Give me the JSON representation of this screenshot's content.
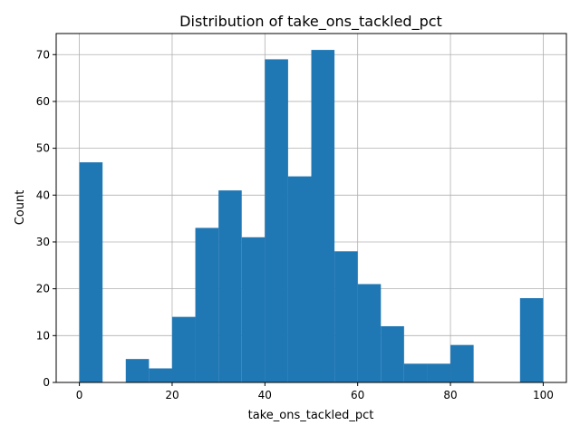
{
  "chart_data": {
    "type": "histogram",
    "title": "Distribution of take_ons_tackled_pct",
    "xlabel": "take_ons_tackled_pct",
    "ylabel": "Count",
    "xlim": [
      -5,
      105
    ],
    "ylim": [
      0,
      74.5
    ],
    "xticks": [
      0,
      20,
      40,
      60,
      80,
      100
    ],
    "yticks": [
      0,
      10,
      20,
      30,
      40,
      50,
      60,
      70
    ],
    "grid": true,
    "bin_width": 5,
    "bins": [
      0,
      5,
      10,
      15,
      20,
      25,
      30,
      35,
      40,
      45,
      50,
      55,
      60,
      65,
      70,
      75,
      80,
      85,
      90,
      95
    ],
    "values": [
      47,
      0,
      5,
      3,
      14,
      33,
      41,
      31,
      69,
      44,
      71,
      28,
      21,
      12,
      4,
      4,
      8,
      0,
      0,
      18
    ],
    "bar_color": "#1f77b4"
  }
}
